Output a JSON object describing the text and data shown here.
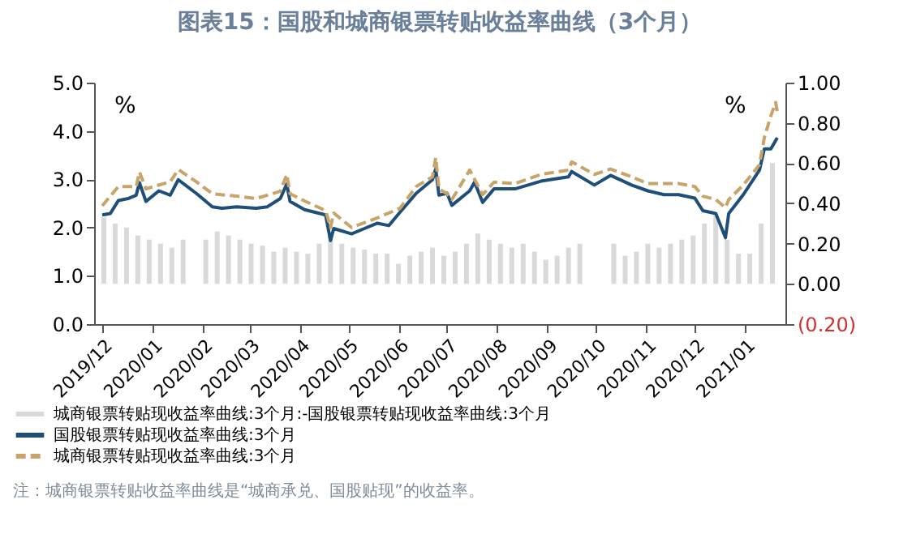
{
  "chart_data": {
    "type": "line",
    "title": "图表15：国股和城商银票转贴收益率曲线（3个月）",
    "ylabel": "%",
    "y2label": "%",
    "annotations": [
      "注：城商银票转贴收益率曲线是“城商承兑、国股贴现”的收益率。"
    ],
    "xlim": [
      "2019-12-01",
      "2021-01-21"
    ],
    "xticks": [
      {
        "value": "2019-12",
        "label": "2019/12"
      },
      {
        "value": "2020-01",
        "label": "2020/01"
      },
      {
        "value": "2020-02",
        "label": "2020/02"
      },
      {
        "value": "2020-03",
        "label": "2020/03"
      },
      {
        "value": "2020-04",
        "label": "2020/04"
      },
      {
        "value": "2020-05",
        "label": "2020/05"
      },
      {
        "value": "2020-06",
        "label": "2020/06"
      },
      {
        "value": "2020-07",
        "label": "2020/07"
      },
      {
        "value": "2020-08",
        "label": "2020/08"
      },
      {
        "value": "2020-09",
        "label": "2020/09"
      },
      {
        "value": "2020-10",
        "label": "2020/10"
      },
      {
        "value": "2020-11",
        "label": "2020/11"
      },
      {
        "value": "2020-12",
        "label": "2020/12"
      },
      {
        "value": "2021-01",
        "label": "2021/01"
      }
    ],
    "ylim": [
      0,
      5
    ],
    "yticks": [
      {
        "value": 0,
        "label": "0.0"
      },
      {
        "value": 1,
        "label": "1.0"
      },
      {
        "value": 2,
        "label": "2.0"
      },
      {
        "value": 3,
        "label": "3.0"
      },
      {
        "value": 4,
        "label": "4.0"
      },
      {
        "value": 5,
        "label": "5.0"
      }
    ],
    "y2lim": [
      -0.2,
      1
    ],
    "y2ticks": [
      {
        "value": -0.2,
        "label": "(0.20)"
      },
      {
        "value": 0,
        "label": "0.00"
      },
      {
        "value": 0.2,
        "label": "0.20"
      },
      {
        "value": 0.4,
        "label": "0.40"
      },
      {
        "value": 0.6,
        "label": "0.60"
      },
      {
        "value": 0.8,
        "label": "0.80"
      },
      {
        "value": 1,
        "label": "1.00"
      }
    ],
    "legend": "bottom left",
    "grid": false,
    "series": [
      {
        "name": "城商银票转贴现收益率曲线:3个月:-国股银票转贴现收益率曲线:3个月",
        "type": "bar",
        "axis": "y2",
        "color": "#d9d9d9",
        "x": [
          "2019-12-02",
          "2019-12-09",
          "2019-12-16",
          "2019-12-23",
          "2019-12-30",
          "2020-01-06",
          "2020-01-13",
          "2020-01-20",
          "2020-02-03",
          "2020-02-10",
          "2020-02-17",
          "2020-02-24",
          "2020-03-02",
          "2020-03-09",
          "2020-03-16",
          "2020-03-23",
          "2020-03-30",
          "2020-04-06",
          "2020-04-13",
          "2020-04-20",
          "2020-04-27",
          "2020-05-04",
          "2020-05-11",
          "2020-05-18",
          "2020-05-25",
          "2020-06-01",
          "2020-06-08",
          "2020-06-15",
          "2020-06-22",
          "2020-06-29",
          "2020-07-06",
          "2020-07-13",
          "2020-07-20",
          "2020-07-27",
          "2020-08-03",
          "2020-08-10",
          "2020-08-17",
          "2020-08-24",
          "2020-08-31",
          "2020-09-07",
          "2020-09-14",
          "2020-09-21",
          "2020-10-12",
          "2020-10-19",
          "2020-10-26",
          "2020-11-02",
          "2020-11-09",
          "2020-11-16",
          "2020-11-23",
          "2020-11-30",
          "2020-12-07",
          "2020-12-14",
          "2020-12-21",
          "2020-12-28",
          "2021-01-04",
          "2021-01-11",
          "2021-01-18"
        ],
        "values": [
          0.33,
          0.3,
          0.28,
          0.24,
          0.22,
          0.2,
          0.18,
          0.22,
          0.22,
          0.26,
          0.24,
          0.22,
          0.2,
          0.19,
          0.16,
          0.18,
          0.16,
          0.15,
          0.2,
          0.24,
          0.2,
          0.18,
          0.17,
          0.15,
          0.15,
          0.1,
          0.14,
          0.16,
          0.18,
          0.14,
          0.16,
          0.2,
          0.25,
          0.22,
          0.2,
          0.18,
          0.2,
          0.16,
          0.12,
          0.14,
          0.18,
          0.2,
          0.2,
          0.14,
          0.16,
          0.2,
          0.18,
          0.2,
          0.22,
          0.24,
          0.3,
          0.35,
          0.22,
          0.15,
          0.15,
          0.3,
          0.6
        ]
      },
      {
        "name": "国股银票转贴现收益率曲线:3个月",
        "line_style": "solid",
        "color": "#1f4e79",
        "x": [
          "2019-12-01",
          "2019-12-06",
          "2019-12-11",
          "2019-12-17",
          "2019-12-22",
          "2019-12-24",
          "2019-12-28",
          "2020-01-05",
          "2020-01-12",
          "2020-01-17",
          "2020-01-28",
          "2020-02-07",
          "2020-02-13",
          "2020-02-22",
          "2020-03-05",
          "2020-03-12",
          "2020-03-20",
          "2020-03-24",
          "2020-03-26",
          "2020-04-04",
          "2020-04-17",
          "2020-04-20",
          "2020-04-22",
          "2020-05-03",
          "2020-05-11",
          "2020-05-19",
          "2020-05-26",
          "2020-06-02",
          "2020-06-12",
          "2020-06-22",
          "2020-06-24",
          "2020-06-26",
          "2020-07-01",
          "2020-07-04",
          "2020-07-15",
          "2020-07-18",
          "2020-07-23",
          "2020-07-30",
          "2020-08-12",
          "2020-08-28",
          "2020-09-14",
          "2020-09-16",
          "2020-09-30",
          "2020-10-10",
          "2020-10-23",
          "2020-11-02",
          "2020-11-12",
          "2020-11-21",
          "2020-12-01",
          "2020-12-06",
          "2020-12-14",
          "2020-12-20",
          "2020-12-22",
          "2020-12-31",
          "2021-01-10",
          "2021-01-13",
          "2021-01-17",
          "2021-01-21"
        ],
        "values": [
          2.26,
          2.29,
          2.56,
          2.6,
          2.67,
          2.93,
          2.54,
          2.76,
          2.67,
          2.99,
          2.71,
          2.43,
          2.4,
          2.43,
          2.4,
          2.43,
          2.6,
          2.9,
          2.54,
          2.37,
          2.26,
          1.73,
          1.98,
          1.87,
          1.98,
          2.09,
          2.04,
          2.32,
          2.71,
          2.99,
          3.21,
          2.67,
          2.71,
          2.46,
          2.76,
          2.94,
          2.52,
          2.8,
          2.8,
          2.96,
          3.05,
          3.16,
          2.88,
          3.08,
          2.88,
          2.76,
          2.68,
          2.68,
          2.61,
          2.35,
          2.29,
          1.79,
          2.29,
          2.68,
          3.19,
          3.63,
          3.63,
          3.86
        ]
      },
      {
        "name": "城商银票转贴现收益率曲线:3个月",
        "line_style": "dashed",
        "color": "#c8a46a",
        "x": [
          "2019-12-01",
          "2019-12-11",
          "2019-12-22",
          "2019-12-24",
          "2019-12-28",
          "2020-01-12",
          "2020-01-17",
          "2020-01-28",
          "2020-02-07",
          "2020-02-22",
          "2020-03-05",
          "2020-03-20",
          "2020-03-24",
          "2020-03-26",
          "2020-04-04",
          "2020-04-17",
          "2020-04-20",
          "2020-04-22",
          "2020-05-03",
          "2020-05-19",
          "2020-06-02",
          "2020-06-12",
          "2020-06-22",
          "2020-06-24",
          "2020-06-26",
          "2020-07-01",
          "2020-07-04",
          "2020-07-15",
          "2020-07-23",
          "2020-07-30",
          "2020-08-12",
          "2020-08-28",
          "2020-09-14",
          "2020-09-16",
          "2020-09-30",
          "2020-10-10",
          "2020-10-23",
          "2020-11-02",
          "2020-11-21",
          "2020-12-01",
          "2020-12-06",
          "2020-12-14",
          "2020-12-20",
          "2020-12-22",
          "2020-12-31",
          "2021-01-10",
          "2021-01-13",
          "2021-01-17",
          "2021-01-20",
          "2021-01-21"
        ],
        "values": [
          2.45,
          2.85,
          2.85,
          3.15,
          2.8,
          2.95,
          3.2,
          2.95,
          2.7,
          2.65,
          2.6,
          2.75,
          3.1,
          2.7,
          2.55,
          2.35,
          2.0,
          2.3,
          2.0,
          2.2,
          2.4,
          2.85,
          3.05,
          3.45,
          2.8,
          2.7,
          2.58,
          3.19,
          2.68,
          2.94,
          2.91,
          3.1,
          3.19,
          3.36,
          3.1,
          3.21,
          3.05,
          2.91,
          2.91,
          2.85,
          2.65,
          2.58,
          2.41,
          2.58,
          2.88,
          3.3,
          3.86,
          4.31,
          4.59,
          4.4
        ]
      }
    ]
  }
}
